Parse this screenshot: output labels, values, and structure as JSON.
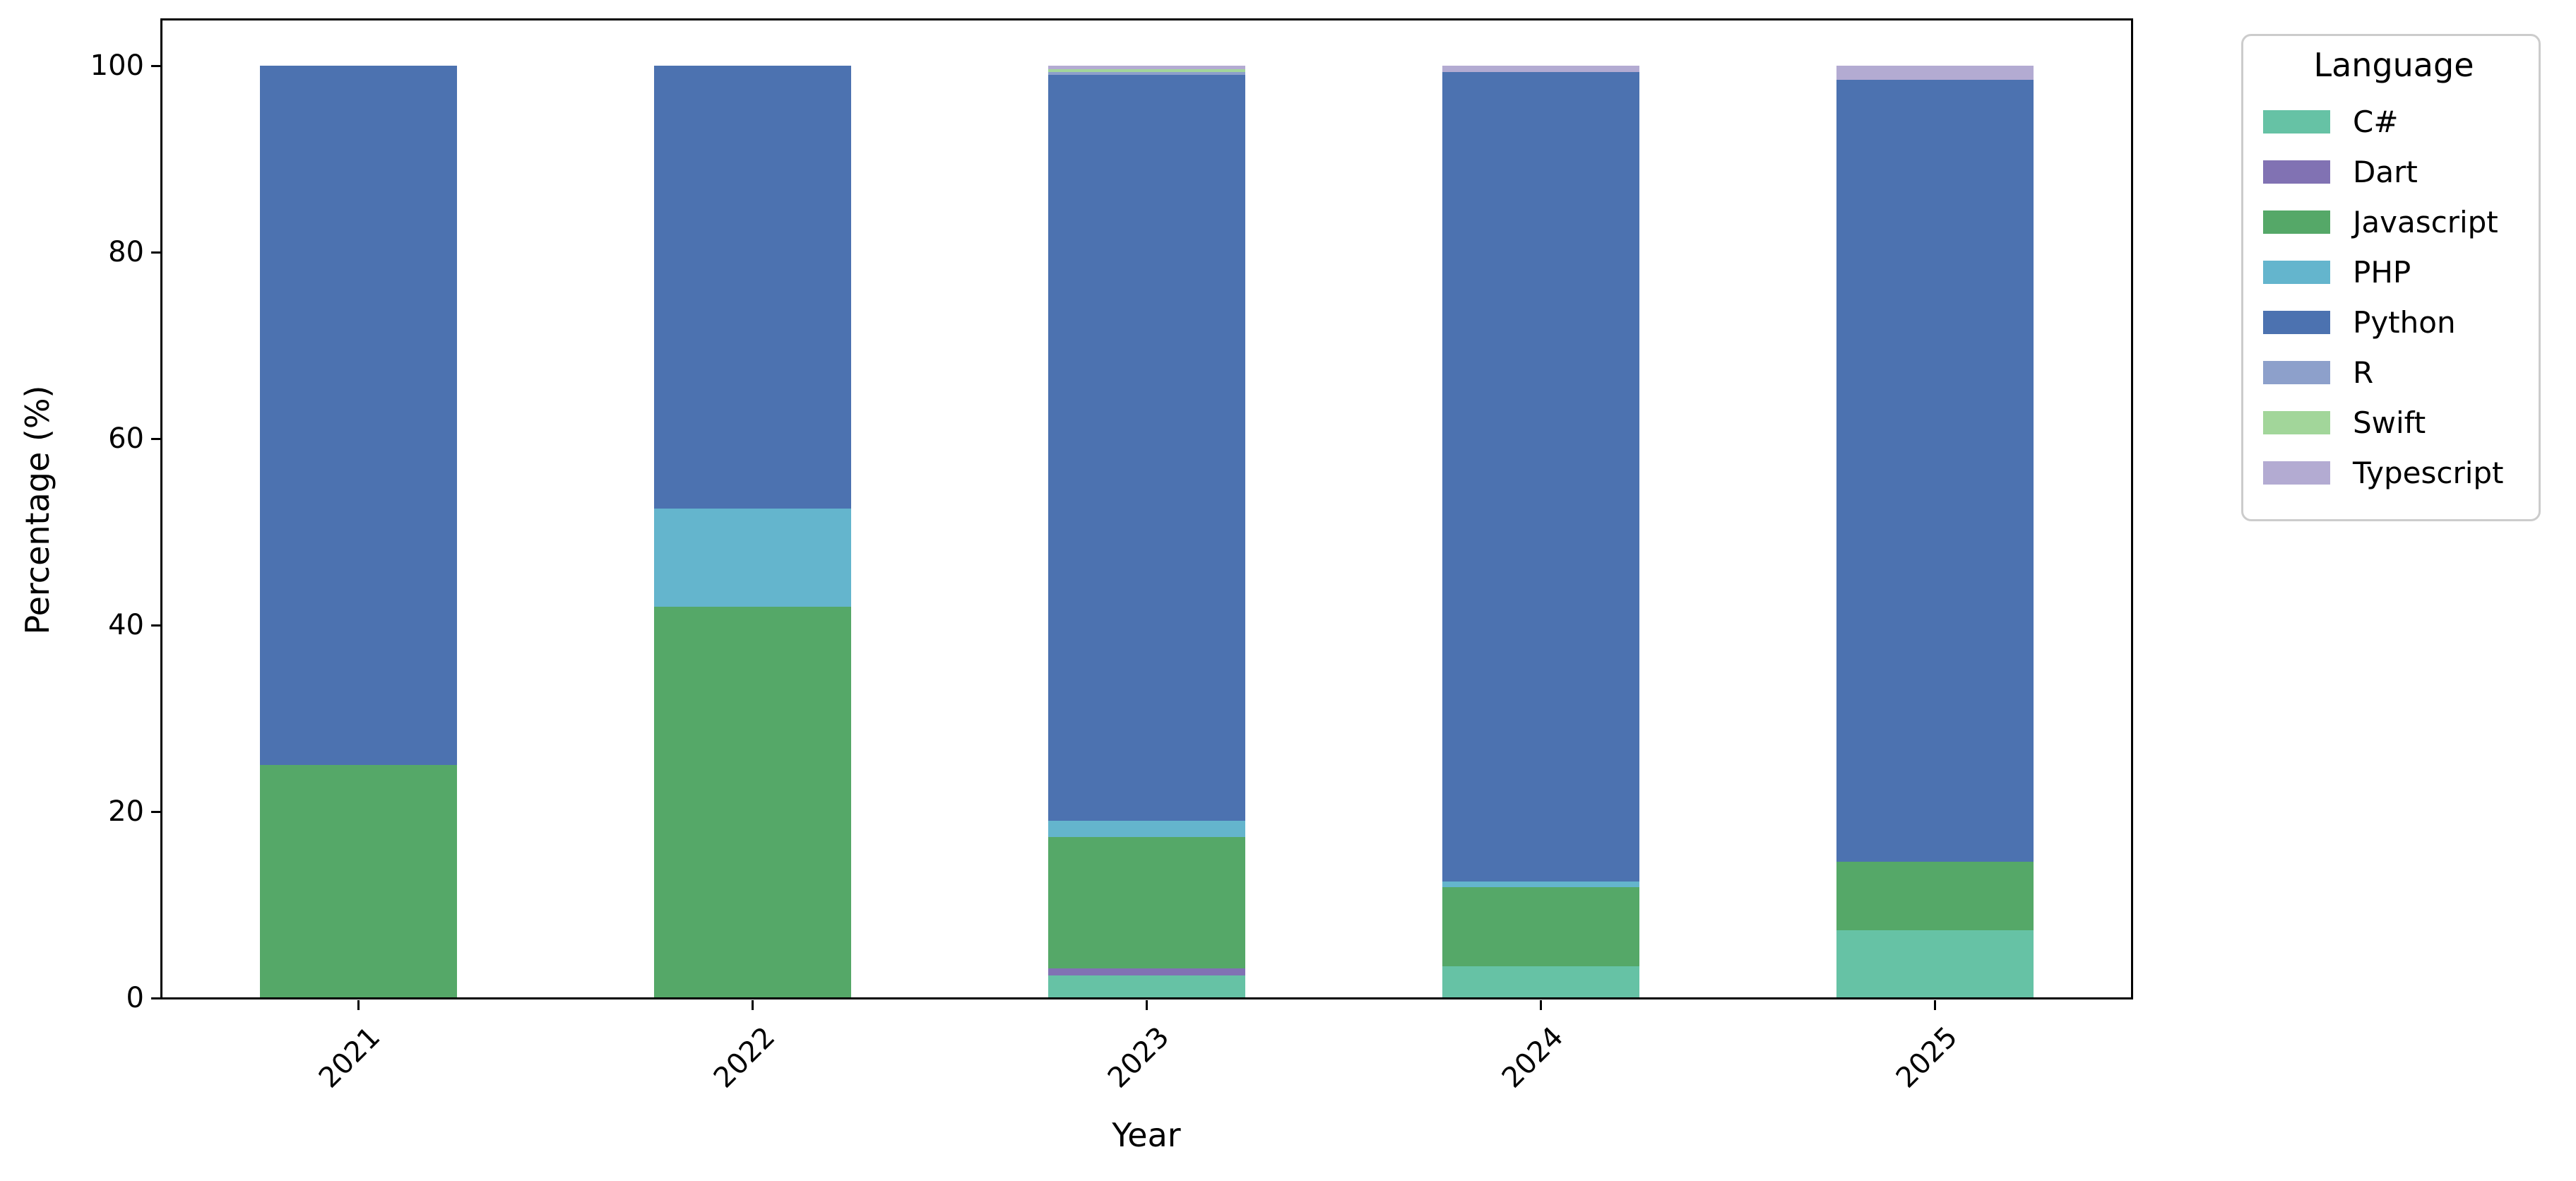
{
  "figure": {
    "background_color": "#ffffff"
  },
  "chart_data": {
    "type": "bar",
    "stacked": true,
    "orientation": "vertical",
    "title": "",
    "xlabel": "Year",
    "ylabel": "Percentage (%)",
    "categories": [
      "2021",
      "2022",
      "2023",
      "2024",
      "2025"
    ],
    "series": [
      {
        "name": "C#",
        "color": "#66c2a5",
        "values": [
          0,
          0,
          2.4,
          3.4,
          7.3
        ]
      },
      {
        "name": "Dart",
        "color": "#8172b3",
        "values": [
          0,
          0,
          0.8,
          0,
          0
        ]
      },
      {
        "name": "Javascript",
        "color": "#55a868",
        "values": [
          25,
          42,
          14.1,
          8.5,
          7.3
        ]
      },
      {
        "name": "PHP",
        "color": "#64b5cd",
        "values": [
          0,
          10.5,
          1.7,
          0.6,
          0
        ]
      },
      {
        "name": "Python",
        "color": "#4c72b0",
        "values": [
          75,
          47.5,
          80.0,
          86.8,
          83.9
        ]
      },
      {
        "name": "R",
        "color": "#8da0cb",
        "values": [
          0,
          0,
          0.35,
          0,
          0
        ]
      },
      {
        "name": "Swift",
        "color": "#a2d69a",
        "values": [
          0,
          0,
          0.3,
          0,
          0
        ]
      },
      {
        "name": "Typescript",
        "color": "#b3abd2",
        "values": [
          0,
          0,
          0.35,
          0.7,
          1.5
        ]
      }
    ],
    "yticks": [
      0,
      20,
      40,
      60,
      80,
      100
    ],
    "ylim": [
      0,
      105
    ],
    "grid": false,
    "legend_title": "Language",
    "legend_position": "outside-upper-right",
    "x_tick_rotation_deg": 45,
    "spine_color": "#000000"
  }
}
